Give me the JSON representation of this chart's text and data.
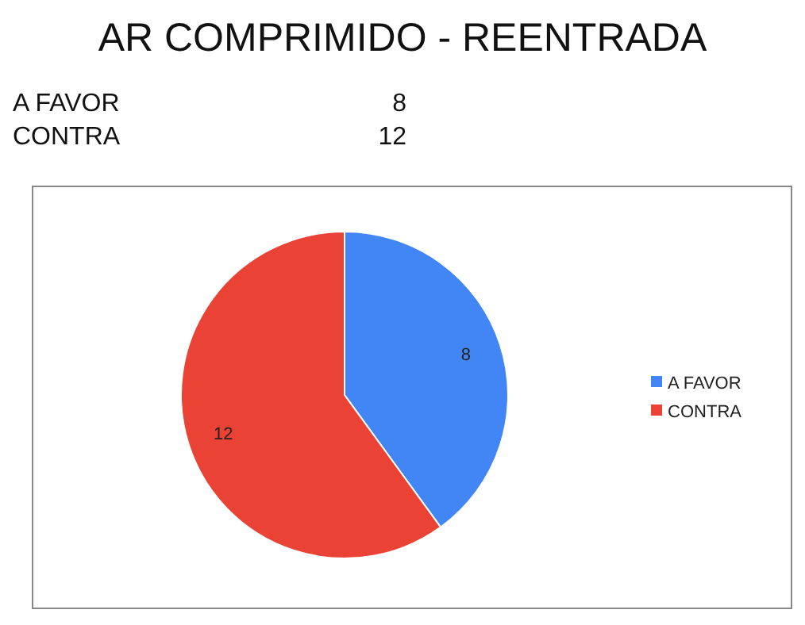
{
  "chart_data": {
    "type": "pie",
    "title": "AR COMPRIMIDO - REENTRADA",
    "categories": [
      "A FAVOR",
      "CONTRA"
    ],
    "values": [
      8,
      12
    ],
    "colors": [
      "#4285f4",
      "#ea4335"
    ],
    "data_labels": true,
    "legend": "right",
    "annotations": [
      "8",
      "12"
    ]
  }
}
